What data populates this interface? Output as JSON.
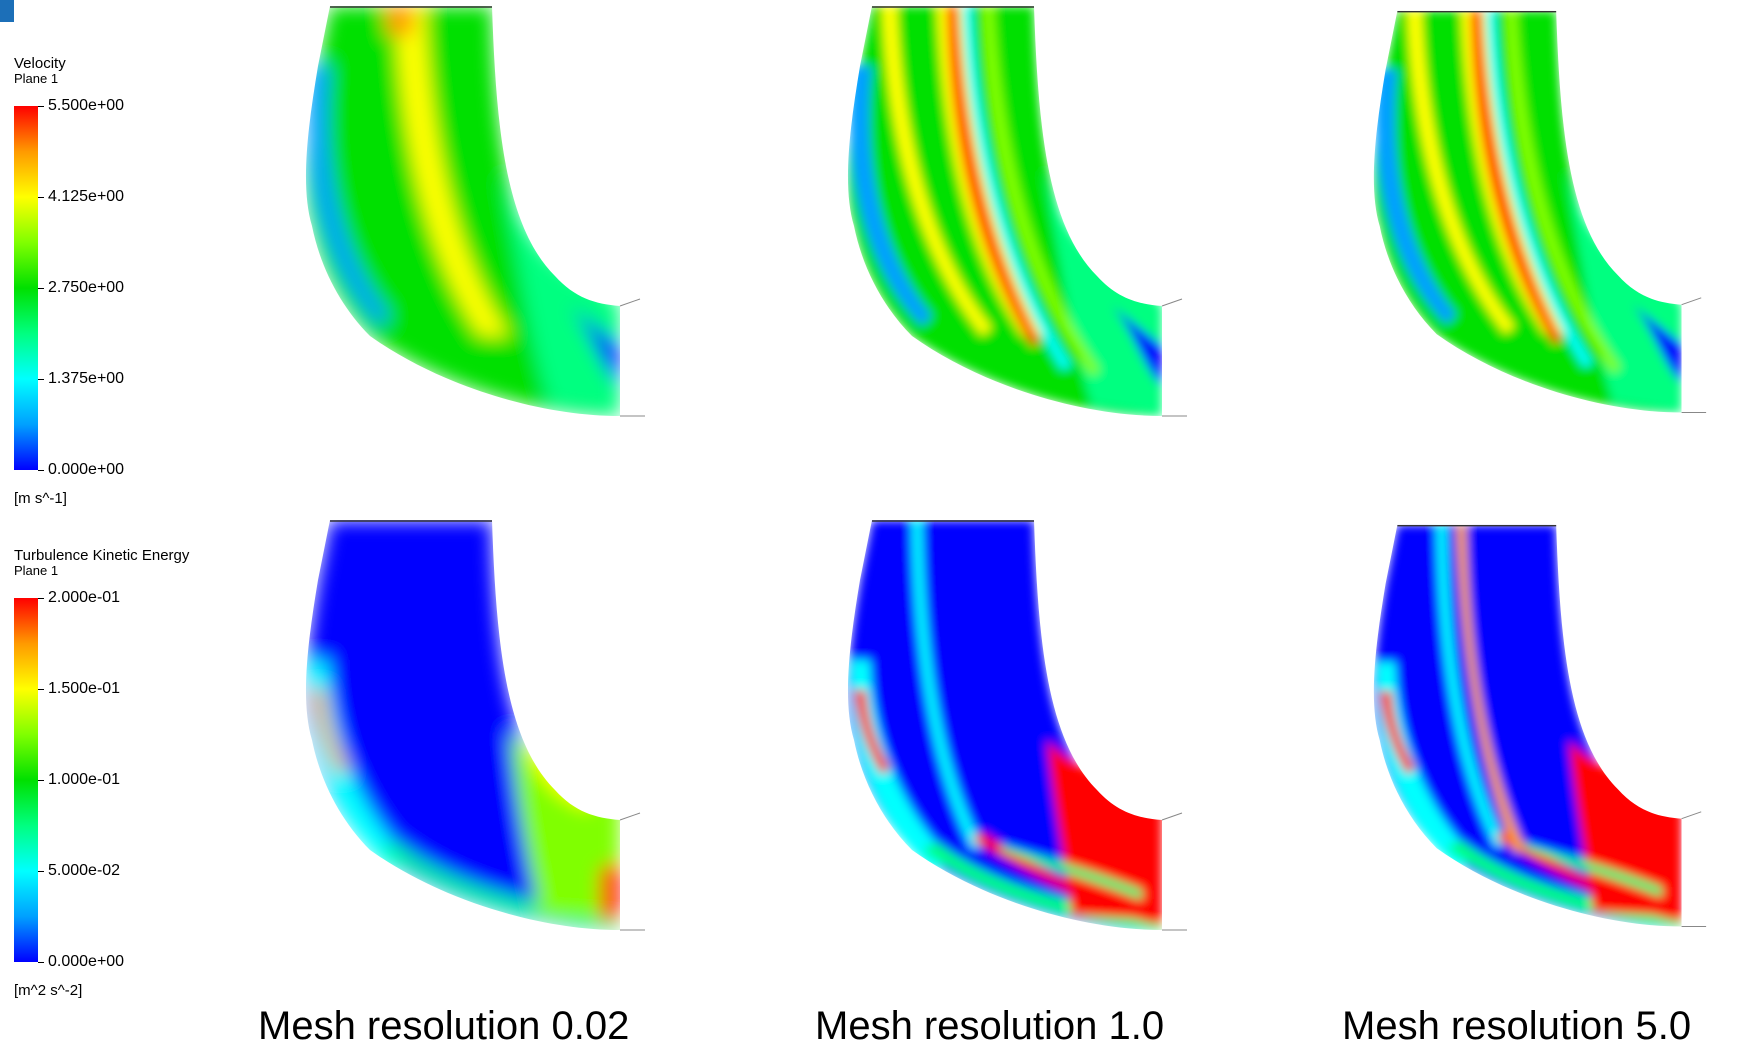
{
  "legends": [
    {
      "title": "Velocity",
      "subtitle": "Plane 1",
      "ticks": [
        "5.500e+00",
        "4.125e+00",
        "2.750e+00",
        "1.375e+00",
        "0.000e+00"
      ],
      "unit": "[m s^-1]"
    },
    {
      "title": "Turbulence Kinetic Energy",
      "subtitle": "Plane 1",
      "ticks": [
        "2.000e-01",
        "1.500e-01",
        "1.000e-01",
        "5.000e-02",
        "0.000e+00"
      ],
      "unit": "[m^2 s^-2]"
    }
  ],
  "colormap": [
    "#0000ff",
    "#00a0ff",
    "#00ffff",
    "#00ff80",
    "#00e000",
    "#80ff00",
    "#ffff00",
    "#ffa000",
    "#ff0000"
  ],
  "captions": [
    "Mesh resolution 0.02",
    "Mesh resolution 1.0",
    "Mesh resolution 5.0"
  ],
  "plots": {
    "velocity": [
      "velocity-contour-mesh-0.02",
      "velocity-contour-mesh-1.0",
      "velocity-contour-mesh-5.0"
    ],
    "tke": [
      "tke-contour-mesh-0.02",
      "tke-contour-mesh-1.0",
      "tke-contour-mesh-5.0"
    ]
  }
}
